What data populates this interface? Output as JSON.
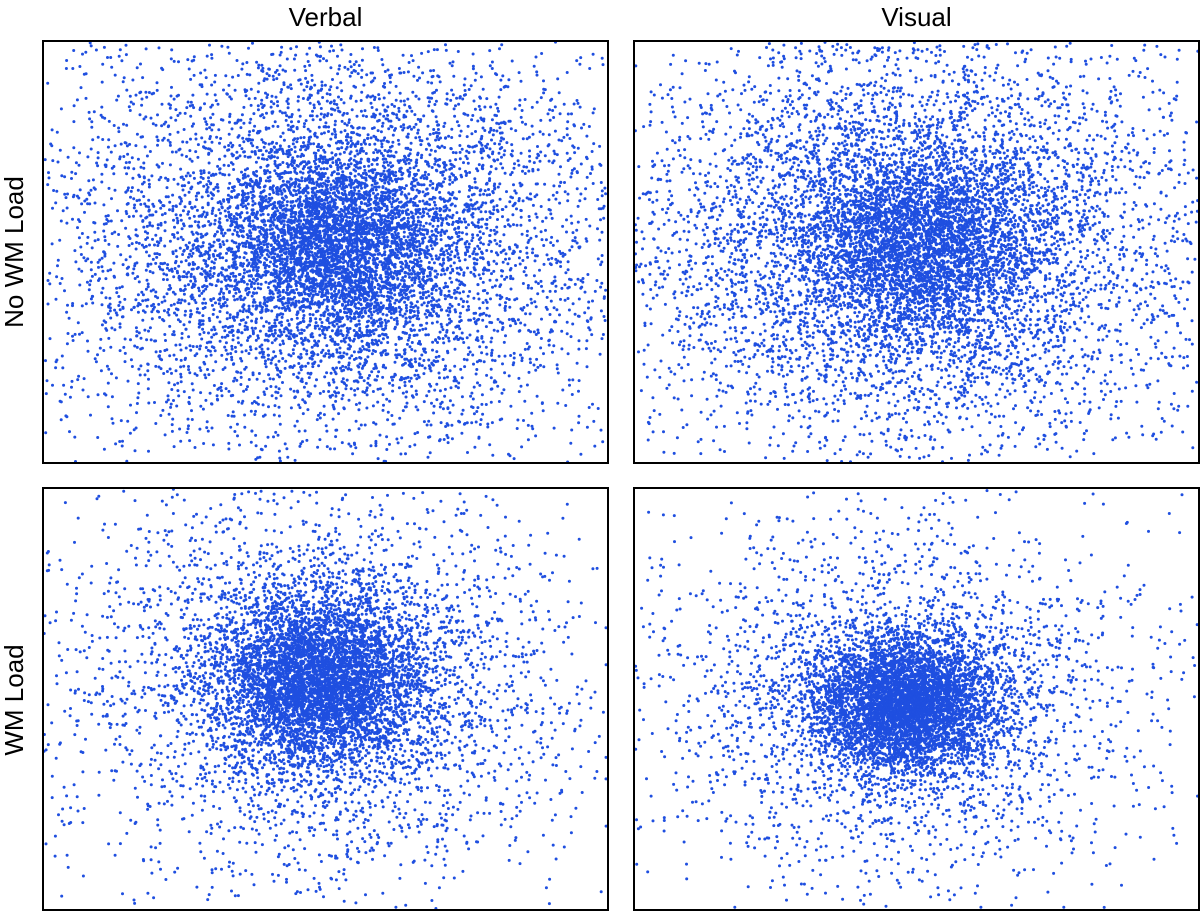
{
  "figure": {
    "col_titles": [
      "Verbal",
      "Visual"
    ],
    "row_titles": [
      "No WM Load",
      "WM Load"
    ]
  },
  "chart_data": [
    {
      "type": "scatter",
      "title": "Verbal",
      "row": "No WM Load",
      "xlim": [
        0,
        1
      ],
      "ylim": [
        0,
        1
      ],
      "grid": false,
      "axis_ticks": false,
      "point_color": "#1f4fe0",
      "n_points": 9000,
      "distribution": {
        "center": [
          0.52,
          0.52
        ],
        "spread": [
          0.26,
          0.26
        ],
        "core_fraction": 0.35,
        "core_spread": [
          0.1,
          0.11
        ]
      }
    },
    {
      "type": "scatter",
      "title": "Visual",
      "row": "No WM Load",
      "xlim": [
        0,
        1
      ],
      "ylim": [
        0,
        1
      ],
      "grid": false,
      "axis_ticks": false,
      "point_color": "#1f4fe0",
      "n_points": 9000,
      "distribution": {
        "center": [
          0.5,
          0.52
        ],
        "spread": [
          0.26,
          0.26
        ],
        "core_fraction": 0.35,
        "core_spread": [
          0.1,
          0.11
        ]
      }
    },
    {
      "type": "scatter",
      "title": "Verbal",
      "row": "WM Load",
      "xlim": [
        0,
        1
      ],
      "ylim": [
        0,
        1
      ],
      "grid": false,
      "axis_ticks": false,
      "point_color": "#1f4fe0",
      "n_points": 8000,
      "distribution": {
        "center": [
          0.49,
          0.54
        ],
        "spread": [
          0.24,
          0.24
        ],
        "core_fraction": 0.6,
        "core_spread": [
          0.09,
          0.1
        ]
      }
    },
    {
      "type": "scatter",
      "title": "Visual",
      "row": "WM Load",
      "xlim": [
        0,
        1
      ],
      "ylim": [
        0,
        1
      ],
      "grid": false,
      "axis_ticks": false,
      "point_color": "#1f4fe0",
      "n_points": 7500,
      "distribution": {
        "center": [
          0.48,
          0.49
        ],
        "spread": [
          0.23,
          0.23
        ],
        "core_fraction": 0.65,
        "core_spread": [
          0.08,
          0.08
        ]
      }
    }
  ]
}
